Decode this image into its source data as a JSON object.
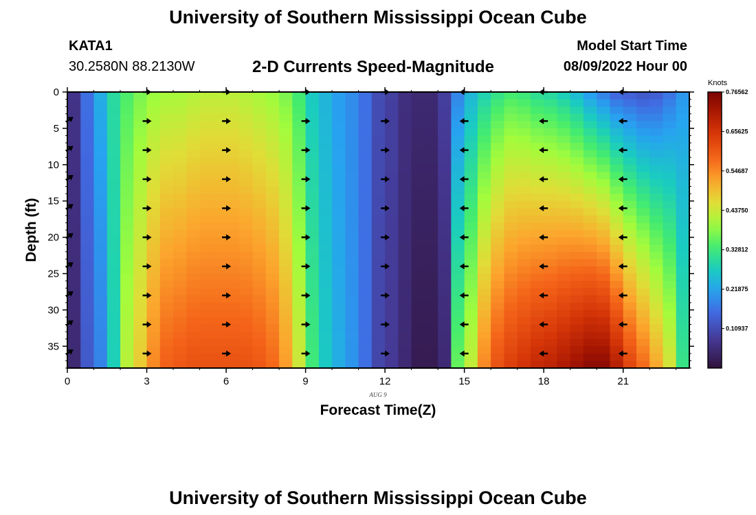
{
  "page": {
    "title": "University of Southern Mississippi Ocean Cube",
    "station": "KATA1",
    "coords": "30.2580N  88.2130W",
    "subtitle": "2-D Currents Speed-Magnitude",
    "model_label": "Model Start Time",
    "model_time": "08/09/2022 Hour 00",
    "date_label": "AUG 9",
    "footer_title": "University of Southern Mississippi Ocean Cube"
  },
  "chart_data": {
    "type": "heatmap",
    "xlabel": "Forecast Time(Z)",
    "ylabel": "Depth (ft)",
    "x_ticks": [
      "0",
      "3",
      "6",
      "9",
      "12",
      "15",
      "18",
      "21"
    ],
    "y_ticks": [
      "0",
      "5",
      "10",
      "15",
      "20",
      "25",
      "30",
      "35"
    ],
    "xlim": [
      0,
      23.5
    ],
    "ylim": [
      38,
      0
    ],
    "colorbar": {
      "label": "Knots",
      "ticks": [
        "0.10937",
        "0.21875",
        "0.32812",
        "0.43750",
        "0.54687",
        "0.65625",
        "0.76562"
      ],
      "tick_values": [
        0.10937,
        0.21875,
        0.32812,
        0.4375,
        0.54687,
        0.65625,
        0.76562
      ],
      "range": [
        0,
        0.7656
      ]
    },
    "columns": [
      {
        "t": 0.0,
        "top": 0.07,
        "bottom": 0.05
      },
      {
        "t": 0.5,
        "top": 0.16,
        "bottom": 0.13
      },
      {
        "t": 1.0,
        "top": 0.23,
        "bottom": 0.18
      },
      {
        "t": 1.5,
        "top": 0.3,
        "bottom": 0.28
      },
      {
        "t": 2.0,
        "top": 0.34,
        "bottom": 0.42
      },
      {
        "t": 2.5,
        "top": 0.37,
        "bottom": 0.48
      },
      {
        "t": 3.0,
        "top": 0.39,
        "bottom": 0.55
      },
      {
        "t": 3.5,
        "top": 0.4,
        "bottom": 0.59
      },
      {
        "t": 4.0,
        "top": 0.4,
        "bottom": 0.6
      },
      {
        "t": 4.5,
        "top": 0.41,
        "bottom": 0.61
      },
      {
        "t": 5.0,
        "top": 0.42,
        "bottom": 0.61
      },
      {
        "t": 5.5,
        "top": 0.42,
        "bottom": 0.61
      },
      {
        "t": 6.0,
        "top": 0.42,
        "bottom": 0.61
      },
      {
        "t": 6.5,
        "top": 0.41,
        "bottom": 0.61
      },
      {
        "t": 7.0,
        "top": 0.4,
        "bottom": 0.6
      },
      {
        "t": 7.5,
        "top": 0.39,
        "bottom": 0.58
      },
      {
        "t": 8.0,
        "top": 0.37,
        "bottom": 0.53
      },
      {
        "t": 8.5,
        "top": 0.33,
        "bottom": 0.44
      },
      {
        "t": 9.0,
        "top": 0.27,
        "bottom": 0.33
      },
      {
        "t": 9.5,
        "top": 0.24,
        "bottom": 0.27
      },
      {
        "t": 10.0,
        "top": 0.21,
        "bottom": 0.23
      },
      {
        "t": 10.5,
        "top": 0.19,
        "bottom": 0.2
      },
      {
        "t": 11.0,
        "top": 0.16,
        "bottom": 0.16
      },
      {
        "t": 11.5,
        "top": 0.11,
        "bottom": 0.1
      },
      {
        "t": 12.0,
        "top": 0.09,
        "bottom": 0.08
      },
      {
        "t": 12.5,
        "top": 0.06,
        "bottom": 0.05
      },
      {
        "t": 13.0,
        "top": 0.05,
        "bottom": 0.02
      },
      {
        "t": 13.5,
        "top": 0.05,
        "bottom": 0.02
      },
      {
        "t": 14.0,
        "top": 0.09,
        "bottom": 0.05
      },
      {
        "t": 14.5,
        "top": 0.18,
        "bottom": 0.36
      },
      {
        "t": 15.0,
        "top": 0.24,
        "bottom": 0.43
      },
      {
        "t": 15.5,
        "top": 0.28,
        "bottom": 0.55
      },
      {
        "t": 16.0,
        "top": 0.31,
        "bottom": 0.61
      },
      {
        "t": 16.5,
        "top": 0.33,
        "bottom": 0.64
      },
      {
        "t": 17.0,
        "top": 0.32,
        "bottom": 0.66
      },
      {
        "t": 17.5,
        "top": 0.3,
        "bottom": 0.68
      },
      {
        "t": 18.0,
        "top": 0.29,
        "bottom": 0.69
      },
      {
        "t": 18.5,
        "top": 0.27,
        "bottom": 0.71
      },
      {
        "t": 19.0,
        "top": 0.24,
        "bottom": 0.73
      },
      {
        "t": 19.5,
        "top": 0.2,
        "bottom": 0.75
      },
      {
        "t": 20.0,
        "top": 0.17,
        "bottom": 0.75
      },
      {
        "t": 20.5,
        "top": 0.14,
        "bottom": 0.7
      },
      {
        "t": 21.0,
        "top": 0.13,
        "bottom": 0.63
      },
      {
        "t": 21.5,
        "top": 0.12,
        "bottom": 0.58
      },
      {
        "t": 22.0,
        "top": 0.13,
        "bottom": 0.52
      },
      {
        "t": 22.5,
        "top": 0.16,
        "bottom": 0.45
      },
      {
        "t": 23.0,
        "top": 0.2,
        "bottom": 0.32
      }
    ],
    "vector_times": [
      3,
      6,
      9,
      12,
      15,
      18,
      21
    ],
    "vector_depths": [
      0,
      4,
      8,
      12,
      16,
      20,
      24,
      28,
      32,
      36
    ],
    "vector_direction_by_time": {
      "0": "northeast",
      "3": "east",
      "6": "east",
      "9": "east",
      "12": "east",
      "15": "west",
      "18": "west",
      "21": "west"
    }
  }
}
